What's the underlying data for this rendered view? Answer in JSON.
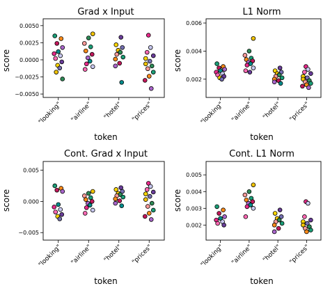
{
  "chart_data": [
    {
      "type": "scatter",
      "title": "Grad x Input",
      "xlabel": "token",
      "ylabel": "score",
      "categories": [
        "\"looking\"",
        "\"airline\"",
        "\"hotel\"",
        "\"prices\""
      ],
      "ylim": [
        -0.0055,
        0.006
      ],
      "yticks": [
        -0.005,
        -0.0025,
        0.0,
        0.0025,
        0.005
      ],
      "ytick_labels": [
        "−0.0050",
        "−0.0025",
        "0.0000",
        "0.0025",
        "0.0050"
      ],
      "groups": [
        {
          "category": "\"looking\"",
          "values": [
            0.0035,
            0.0031,
            0.0024,
            0.0018,
            0.0012,
            0.0009,
            0.0006,
            0.0002,
            -0.0003,
            -0.0008,
            -0.0012,
            -0.0018,
            -0.0028
          ]
        },
        {
          "category": "\"airline\"",
          "values": [
            0.0038,
            0.0032,
            0.0024,
            0.0019,
            0.0013,
            0.0008,
            0.0003,
            -0.0002,
            -0.0006,
            -0.001,
            -0.0014
          ]
        },
        {
          "category": "\"hotel\"",
          "values": [
            0.0033,
            0.0022,
            0.0018,
            0.0014,
            0.0011,
            0.0008,
            0.0004,
            0.0001,
            -0.0005,
            -0.0009,
            -0.0033
          ]
        },
        {
          "category": "\"prices\"",
          "values": [
            0.0036,
            0.0018,
            0.0011,
            0.0006,
            0.0002,
            -0.0002,
            -0.0006,
            -0.0009,
            -0.0013,
            -0.0018,
            -0.0024,
            -0.003,
            -0.0042
          ]
        }
      ]
    },
    {
      "type": "scatter",
      "title": "L1 Norm",
      "xlabel": "token",
      "ylabel": "score",
      "categories": [
        "\"looking\"",
        "\"airline\"",
        "\"hotel\"",
        "\"prices\""
      ],
      "ylim": [
        0.0007,
        0.0063
      ],
      "yticks": [
        0.002,
        0.004,
        0.006
      ],
      "ytick_labels": [
        "0.002",
        "0.004",
        "0.006"
      ],
      "groups": [
        {
          "category": "\"looking\"",
          "values": [
            0.0031,
            0.0029,
            0.0028,
            0.0027,
            0.0026,
            0.0025,
            0.0024,
            0.0023,
            0.0022,
            0.0021,
            0.002
          ]
        },
        {
          "category": "\"airline\"",
          "values": [
            0.0049,
            0.004,
            0.0037,
            0.0035,
            0.0034,
            0.0033,
            0.0032,
            0.0031,
            0.003,
            0.0028,
            0.0026,
            0.0025
          ]
        },
        {
          "category": "\"hotel\"",
          "values": [
            0.0028,
            0.0026,
            0.0025,
            0.0024,
            0.0023,
            0.0022,
            0.0021,
            0.002,
            0.0019,
            0.0018,
            0.0017
          ]
        },
        {
          "category": "\"prices\"",
          "values": [
            0.0029,
            0.0027,
            0.0025,
            0.0024,
            0.0022,
            0.0021,
            0.002,
            0.0019,
            0.0018,
            0.0017,
            0.0016,
            0.0015,
            0.0014
          ]
        }
      ]
    },
    {
      "type": "scatter",
      "title": "Cont. Grad x Input",
      "xlabel": "token",
      "ylabel": "score",
      "categories": [
        "\"looking\"",
        "\"airline\"",
        "\"hotel\"",
        "\"prices\""
      ],
      "ylim": [
        -0.0062,
        0.0064
      ],
      "yticks": [
        -0.005,
        0.0,
        0.005
      ],
      "ytick_labels": [
        "−0.005",
        "0.000",
        "0.005"
      ],
      "groups": [
        {
          "category": "\"looking\"",
          "values": [
            0.0025,
            0.0021,
            0.0018,
            0.0016,
            -0.0005,
            -0.0009,
            -0.0013,
            -0.0017,
            -0.0021,
            -0.0024,
            -0.0028
          ]
        },
        {
          "category": "\"airline\"",
          "values": [
            0.0016,
            0.0013,
            0.0009,
            0.0006,
            0.0003,
            0.0,
            -0.0003,
            -0.0006,
            -0.001,
            -0.0014,
            -0.0019
          ]
        },
        {
          "category": "\"hotel\"",
          "values": [
            0.0022,
            0.0019,
            0.0016,
            0.0013,
            0.0011,
            0.0009,
            0.0007,
            0.0004,
            0.0001,
            -0.0003,
            -0.0007
          ]
        },
        {
          "category": "\"prices\"",
          "values": [
            0.0029,
            0.0024,
            0.0019,
            0.0015,
            0.0012,
            0.0008,
            0.0003,
            -0.0003,
            -0.0008,
            -0.0014,
            -0.0019,
            -0.0024,
            -0.0029
          ]
        }
      ]
    },
    {
      "type": "scatter",
      "title": "Cont. L1 Norm",
      "xlabel": "token",
      "ylabel": "score",
      "categories": [
        "\"looking\"",
        "\"airline\"",
        "\"hotel\"",
        "\"prices\""
      ],
      "ylim": [
        0.0011,
        0.0058
      ],
      "yticks": [
        0.002,
        0.003,
        0.004,
        0.005
      ],
      "ytick_labels": [
        "0.002",
        "0.003",
        "0.004",
        "0.005"
      ],
      "groups": [
        {
          "category": "\"looking\"",
          "values": [
            0.0031,
            0.0029,
            0.0027,
            0.0025,
            0.0024,
            0.0023,
            0.0022,
            0.0021,
            0.002
          ]
        },
        {
          "category": "\"airline\"",
          "values": [
            0.0044,
            0.004,
            0.0038,
            0.0036,
            0.0035,
            0.0034,
            0.0033,
            0.0032,
            0.0031,
            0.003,
            0.0025
          ]
        },
        {
          "category": "\"hotel\"",
          "values": [
            0.0029,
            0.0027,
            0.0025,
            0.0024,
            0.0023,
            0.0022,
            0.0021,
            0.002,
            0.0018,
            0.0016
          ]
        },
        {
          "category": "\"prices\"",
          "values": [
            0.0034,
            0.0033,
            0.0025,
            0.0023,
            0.0022,
            0.0021,
            0.002,
            0.0019,
            0.0018,
            0.0017,
            0.0016
          ]
        }
      ]
    }
  ],
  "palette": [
    "#1b9e77",
    "#e7298a",
    "#7570b3",
    "#ff8c1a",
    "#c8c8f0",
    "#f2c400",
    "#c2185b",
    "#ff69b4",
    "#2e8b57",
    "#aa66cc",
    "#6a3d9a",
    "#fb9a99",
    "#008b8b",
    "#ffd700"
  ]
}
